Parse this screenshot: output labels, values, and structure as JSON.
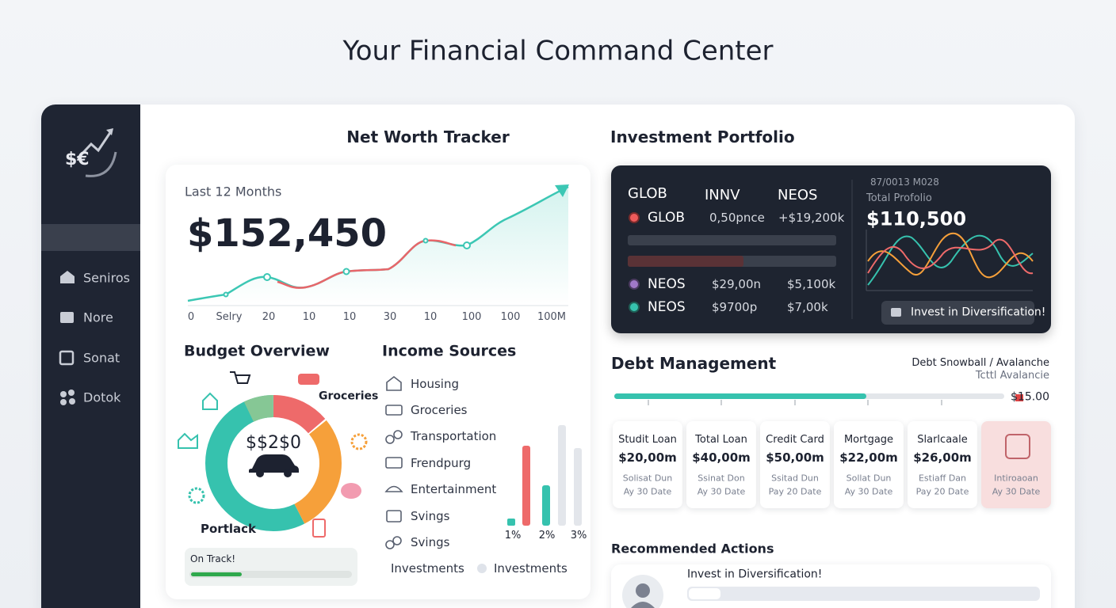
{
  "header": {
    "title": "Your Financial Command Center"
  },
  "sidebar": {
    "logo": "$€",
    "items": [
      "Seniros",
      "Nore",
      "Sonat",
      "Dotok"
    ]
  },
  "net_worth": {
    "title": "Net Worth Tracker",
    "period": "Last 12 Months",
    "value": "$152,450",
    "x_labels": [
      "0",
      "Selry",
      "20",
      "10",
      "10",
      "30",
      "10",
      "100",
      "100",
      "100M"
    ]
  },
  "budget": {
    "title": "Budget Overview",
    "center": "$$2$0",
    "segment_label": "Groceries",
    "bottom_label": "Portlack",
    "status": "On Track!"
  },
  "income": {
    "title": "Income Sources",
    "items": [
      "Housing",
      "Groceries",
      "Transportation",
      "Frendpurg",
      "Entertainment",
      "Svings",
      "Svings"
    ],
    "legend": [
      "Investments",
      "Investments"
    ],
    "bar_labels": [
      "1%",
      "2%",
      "3%"
    ]
  },
  "investment": {
    "title": "Investment Portfolio",
    "headers": [
      "GLOB",
      "INNV",
      "NEOS"
    ],
    "rows": [
      [
        "GLOB",
        "0,50pnce",
        "+$19,200k"
      ],
      [
        "NEOS",
        "$29,00n",
        "$5,100k"
      ],
      [
        "NEOS",
        "$9700p",
        "$7,00k"
      ]
    ],
    "date": "87/0013 M028",
    "total_label": "Total Profolio",
    "total": "$110,500",
    "button": "Invest in Diversification!"
  },
  "debt": {
    "title": "Debt Management",
    "toggle": "Debt Snowball / Avalanche",
    "subtitle": "Tcttl Avalancie",
    "amount": "$15.00",
    "cards": [
      [
        "Studit Loan",
        "$20,00m",
        "Solisat Dun",
        "Ay 30 Date"
      ],
      [
        "Total Loan",
        "$40,00m",
        "Ssinat Don",
        "Ay 30 Date"
      ],
      [
        "Credit Card",
        "$50,00m",
        "Ssitad Dun",
        "Pay 20 Date"
      ],
      [
        "Mortgage",
        "$22,00m",
        "Sollat Dun",
        "Ay 30 Date"
      ],
      [
        "Slarlcaale",
        "$26,00m",
        "Estiaff Dan",
        "Pay 20 Date"
      ],
      [
        "Intiroaoan",
        "Ay 30 Date"
      ]
    ]
  },
  "recommended": {
    "title": "Recommended Actions",
    "item": "Invest in Diversification!"
  }
}
